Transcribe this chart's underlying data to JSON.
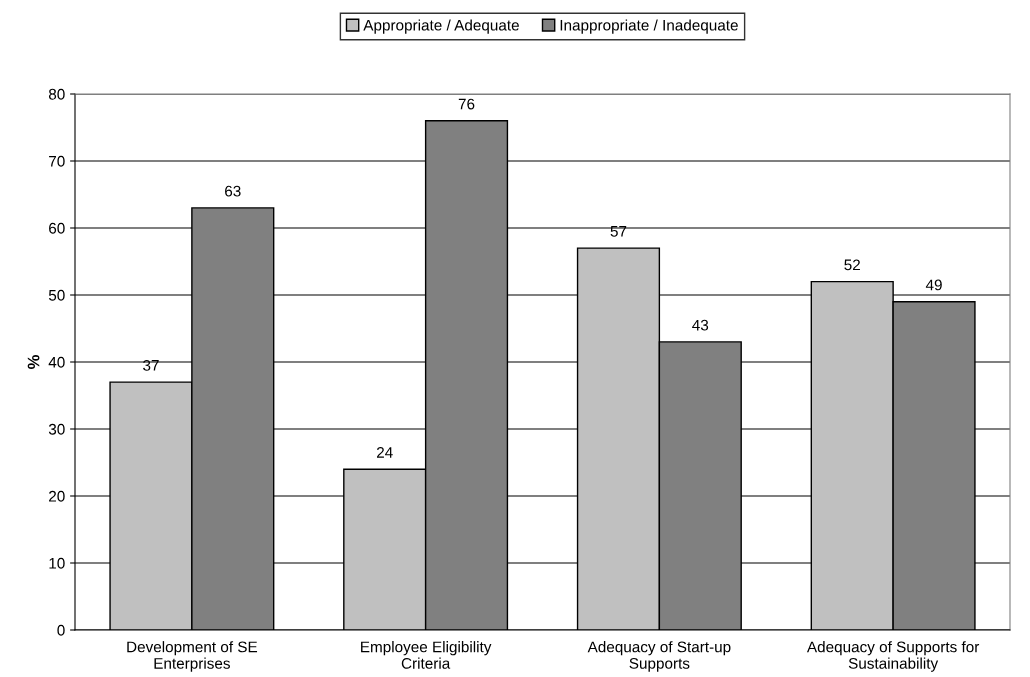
{
  "chart_data": {
    "type": "bar",
    "ylabel": "%",
    "categories": [
      "Development of SE\nEnterprises",
      "Employee Eligibility\nCriteria",
      "Adequacy of Start-up\nSupports",
      "Adequacy of Supports for\nSustainability"
    ],
    "series": [
      {
        "name": "Appropriate / Adequate",
        "color": "#c0c0c0",
        "values": [
          37,
          24,
          57,
          52
        ]
      },
      {
        "name": "Inappropriate / Inadequate",
        "color": "#808080",
        "values": [
          63,
          76,
          43,
          49
        ]
      }
    ],
    "ylim": [
      0,
      80
    ],
    "yticks": [
      0,
      10,
      20,
      30,
      40,
      50,
      60,
      70,
      80
    ],
    "grid": "y",
    "legend": "top",
    "data_labels": true
  }
}
